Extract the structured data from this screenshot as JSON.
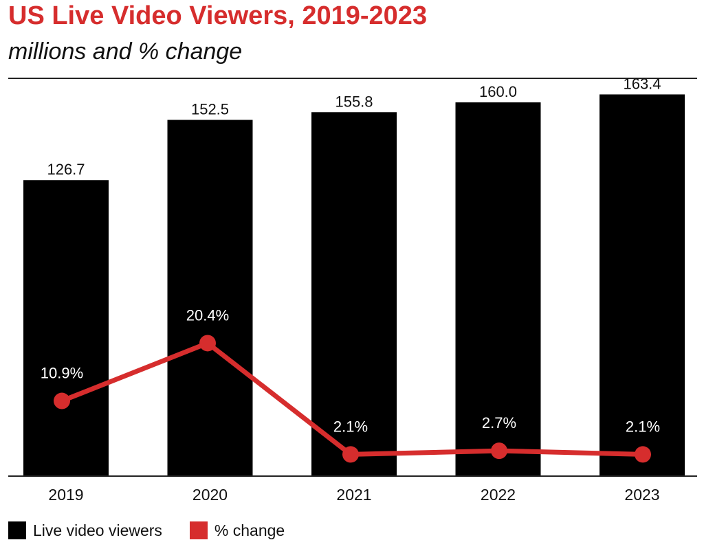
{
  "chart_data": {
    "type": "bar",
    "title": "US Live Video Viewers, 2019-2023",
    "subtitle": "millions and % change",
    "categories": [
      "2019",
      "2020",
      "2021",
      "2022",
      "2023"
    ],
    "series": [
      {
        "name": "Live video viewers",
        "type": "bar",
        "values": [
          126.7,
          152.5,
          155.8,
          160.0,
          163.4
        ],
        "labels": [
          "126.7",
          "152.5",
          "155.8",
          "160.0",
          "163.4"
        ],
        "color": "#000000"
      },
      {
        "name": "% change",
        "type": "line",
        "values": [
          10.9,
          20.4,
          2.1,
          2.7,
          2.1
        ],
        "labels": [
          "10.9%",
          "20.4%",
          "2.1%",
          "2.7%",
          "2.1%"
        ],
        "color": "#d62d2d"
      }
    ],
    "ylim": [
      0,
      165
    ],
    "grid": false,
    "legend_position": "bottom-left"
  }
}
